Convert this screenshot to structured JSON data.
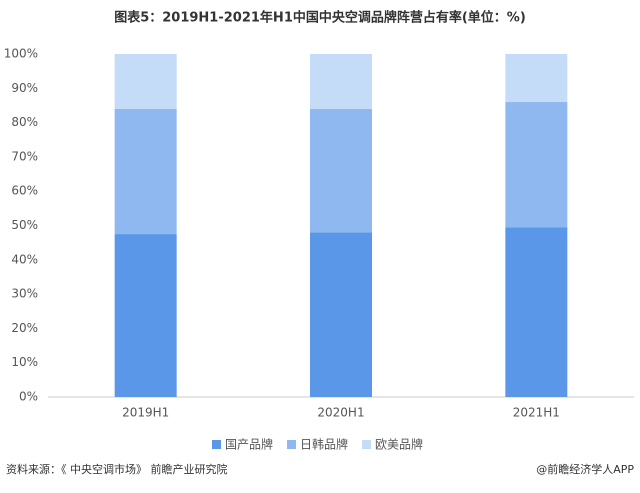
{
  "chart_data": {
    "type": "stacked_bar",
    "title": "图表5：2019H1-2021年H1中国中央空调品牌阵营占有率(单位：%)",
    "categories": [
      "2019H1",
      "2020H1",
      "2021H1"
    ],
    "series": [
      {
        "name": "国产品牌",
        "color": "#5b97e8",
        "values": [
          47.5,
          48,
          49.5
        ]
      },
      {
        "name": "日韩品牌",
        "color": "#8fb8f0",
        "values": [
          36.5,
          36,
          36.5
        ]
      },
      {
        "name": "欧美品牌",
        "color": "#c5dcf8",
        "values": [
          16,
          16,
          14
        ]
      }
    ],
    "ylim": [
      0,
      100
    ],
    "yticks": [
      {
        "value": 0,
        "label": "0%"
      },
      {
        "value": 10,
        "label": "10%"
      },
      {
        "value": 20,
        "label": "20%"
      },
      {
        "value": 30,
        "label": "30%"
      },
      {
        "value": 40,
        "label": "40%"
      },
      {
        "value": 50,
        "label": "50%"
      },
      {
        "value": 60,
        "label": "60%"
      },
      {
        "value": 70,
        "label": "70%"
      },
      {
        "value": 80,
        "label": "80%"
      },
      {
        "value": 90,
        "label": "90%"
      },
      {
        "value": 100,
        "label": "100%"
      }
    ],
    "source": "资料来源：《 中央空调市场》 前瞻产业研究院",
    "credit": "@前瞻经济学人APP"
  }
}
